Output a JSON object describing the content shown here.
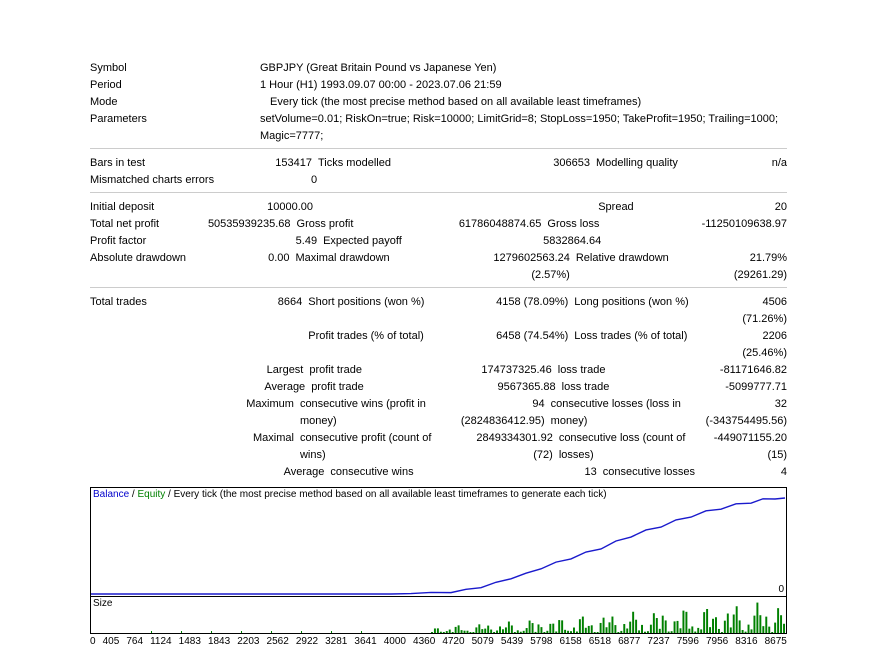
{
  "header": {
    "symbol_label": "Symbol",
    "symbol_value": "GBPJPY (Great Britain Pound vs Japanese Yen)",
    "period_label": "Period",
    "period_value": "1 Hour (H1) 1993.09.07 00:00 - 2023.07.06 21:59",
    "mode_label": "Mode",
    "mode_value": "Every tick (the most precise method based on all available least timeframes)",
    "params_label": "Parameters",
    "params_value": "setVolume=0.01; RiskOn=true; Risk=10000; LimitGrid=8; StopLoss=1950; TakeProfit=1950; Trailing=1000; Magic=7777;"
  },
  "stats": {
    "bars_label": "Bars in test",
    "bars_value": "153417",
    "ticks_label": "Ticks modelled",
    "ticks_value": "306653",
    "quality_label": "Modelling quality",
    "quality_value": "n/a",
    "mismatch_label": "Mismatched charts errors",
    "mismatch_value": "0",
    "deposit_label": "Initial deposit",
    "deposit_value": "10000.00",
    "spread_label": "Spread",
    "spread_value": "20",
    "netprofit_label": "Total net profit",
    "netprofit_value": "50535939235.68",
    "grossprofit_label": "Gross profit",
    "grossprofit_value": "61786048874.65",
    "grossloss_label": "Gross loss",
    "grossloss_value": "-11250109638.97",
    "profitfactor_label": "Profit factor",
    "profitfactor_value": "5.49",
    "payoff_label": "Expected payoff",
    "payoff_value": "5832864.64",
    "absdd_label": "Absolute drawdown",
    "absdd_value": "0.00",
    "maxdd_label": "Maximal drawdown",
    "maxdd_value": "1279602563.24 (2.57%)",
    "reldd_label": "Relative drawdown",
    "reldd_value": "21.79% (29261.29)",
    "totaltrades_label": "Total trades",
    "totaltrades_value": "8664",
    "short_label": "Short positions (won %)",
    "short_value": "4158 (78.09%)",
    "long_label": "Long positions (won %)",
    "long_value": "4506 (71.26%)",
    "ptrades_label": "Profit trades (% of total)",
    "ptrades_value": "6458 (74.54%)",
    "ltrades_label": "Loss trades (% of total)",
    "ltrades_value": "2206 (25.46%)",
    "largest": "Largest",
    "largest_pt_label": "profit trade",
    "largest_pt_value": "174737325.46",
    "largest_lt_label": "loss trade",
    "largest_lt_value": "-81171646.82",
    "average": "Average",
    "avg_pt_value": "9567365.88",
    "avg_lt_value": "-5099777.71",
    "maximum": "Maximum",
    "max_cw_label": "consecutive wins (profit in money)",
    "max_cw_value": "94 (2824836412.95)",
    "max_cl_label": "consecutive losses (loss in money)",
    "max_cl_value": "32 (-343754495.56)",
    "maximal": "Maximal",
    "max_cp_label": "consecutive profit (count of wins)",
    "max_cp_value": "2849334301.92 (72)",
    "max_closs_label": "consecutive loss (count of losses)",
    "max_closs_value": "-449071155.20 (15)",
    "avg_cw_label": "consecutive wins",
    "avg_cw_value": "13",
    "avg_cl_label": "consecutive losses",
    "avg_cl_value": "4"
  },
  "chart": {
    "legend_balance": "Balance",
    "legend_equity": "Equity",
    "legend_rest": " / Every tick (the most precise method based on all available least timeframes to generate each tick)",
    "zero": "0",
    "size_label": "Size",
    "xaxis": [
      "0",
      "405",
      "764",
      "1124",
      "1483",
      "1843",
      "2203",
      "2562",
      "2922",
      "3281",
      "3641",
      "4000",
      "4360",
      "4720",
      "5079",
      "5439",
      "5798",
      "6158",
      "6518",
      "6877",
      "7237",
      "7596",
      "7956",
      "8316",
      "8675"
    ],
    "balance_color": "#1a1acc",
    "equity_color": "#008000",
    "bg_color": "#ffffff",
    "border_color": "#000000",
    "balance_points": [
      [
        0,
        106
      ],
      [
        30,
        106
      ],
      [
        60,
        106
      ],
      [
        90,
        106
      ],
      [
        120,
        106
      ],
      [
        150,
        106
      ],
      [
        180,
        106
      ],
      [
        210,
        106
      ],
      [
        240,
        106
      ],
      [
        270,
        106
      ],
      [
        300,
        106
      ],
      [
        320,
        105
      ],
      [
        340,
        105
      ],
      [
        360,
        104
      ],
      [
        375,
        102
      ],
      [
        390,
        99
      ],
      [
        405,
        95
      ],
      [
        420,
        90
      ],
      [
        435,
        86
      ],
      [
        450,
        80
      ],
      [
        465,
        75
      ],
      [
        480,
        70
      ],
      [
        495,
        65
      ],
      [
        510,
        60
      ],
      [
        525,
        54
      ],
      [
        540,
        48
      ],
      [
        555,
        43
      ],
      [
        570,
        38
      ],
      [
        585,
        33
      ],
      [
        600,
        28
      ],
      [
        615,
        24
      ],
      [
        630,
        20
      ],
      [
        645,
        17
      ],
      [
        660,
        14
      ],
      [
        672,
        12
      ],
      [
        684,
        11
      ],
      [
        694,
        10
      ]
    ],
    "size_bars_start": 340,
    "size_bars_count": 120,
    "size_bar_max_h": 30
  }
}
